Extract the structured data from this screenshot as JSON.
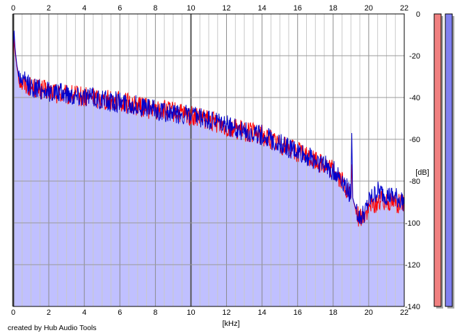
{
  "credit": "created by Hub Audio Tools",
  "chart_data": {
    "type": "area",
    "title": "",
    "xlabel": "[kHz]",
    "ylabel": "[dB]",
    "xlim": [
      0,
      22
    ],
    "ylim": [
      -140,
      0
    ],
    "x_ticks": [
      "0",
      "2",
      "4",
      "6",
      "8",
      "10",
      "12",
      "14",
      "16",
      "18",
      "20",
      "22"
    ],
    "y_ticks": [
      "0",
      "-20",
      "-40",
      "-60",
      "-80",
      "-100",
      "-120",
      "-140"
    ],
    "x_grid_step": 0.5,
    "y_grid_step": 20,
    "grid": true,
    "fill_color": "#c0c0ff",
    "series": [
      {
        "color": "#ff0000",
        "x": [
          0,
          0.05,
          0.1,
          0.2,
          0.3,
          0.5,
          0.8,
          1,
          1.5,
          2,
          2.5,
          3,
          3.5,
          4,
          4.5,
          5,
          5.5,
          6,
          6.5,
          7,
          7.5,
          8,
          8.5,
          9,
          9.5,
          10,
          10.5,
          11,
          11.5,
          12,
          12.5,
          13,
          13.5,
          14,
          14.5,
          15,
          15.5,
          16,
          16.5,
          17,
          17.5,
          18,
          18.5,
          18.8,
          19,
          19.05,
          19.1,
          19.3,
          19.5,
          19.8,
          20,
          20.5,
          21,
          21.5,
          22
        ],
        "values": [
          -20,
          -12,
          -18,
          -25,
          -30,
          -33,
          -34,
          -35,
          -36,
          -37,
          -38,
          -39,
          -39,
          -40,
          -40,
          -41,
          -41,
          -42,
          -43,
          -44,
          -45,
          -46,
          -46,
          -47,
          -48,
          -49,
          -50,
          -51,
          -52,
          -54,
          -55,
          -56,
          -57,
          -58,
          -60,
          -62,
          -64,
          -66,
          -68,
          -70,
          -72,
          -75,
          -80,
          -85,
          -88,
          -72,
          -88,
          -95,
          -98,
          -96,
          -93,
          -90,
          -89,
          -90,
          -92
        ]
      },
      {
        "color": "#0000cc",
        "x": [
          0,
          0.05,
          0.1,
          0.2,
          0.3,
          0.5,
          0.8,
          1,
          1.5,
          2,
          2.5,
          3,
          3.5,
          4,
          4.5,
          5,
          5.5,
          6,
          6.5,
          7,
          7.5,
          8,
          8.5,
          9,
          9.5,
          10,
          10.5,
          11,
          11.5,
          12,
          12.5,
          13,
          13.5,
          14,
          14.5,
          15,
          15.5,
          16,
          16.5,
          17,
          17.5,
          18,
          18.5,
          18.8,
          19,
          19.05,
          19.1,
          19.3,
          19.5,
          19.8,
          20,
          20.5,
          21,
          21.5,
          22
        ],
        "values": [
          -18,
          -8,
          -16,
          -24,
          -29,
          -32,
          -33,
          -35,
          -36,
          -37,
          -38,
          -38,
          -39,
          -39,
          -40,
          -41,
          -42,
          -42,
          -43,
          -44,
          -45,
          -46,
          -47,
          -48,
          -48,
          -49,
          -50,
          -51,
          -52,
          -53,
          -55,
          -56,
          -57,
          -58,
          -60,
          -62,
          -64,
          -66,
          -68,
          -70,
          -72,
          -75,
          -79,
          -84,
          -86,
          -57,
          -88,
          -94,
          -98,
          -95,
          -90,
          -85,
          -87,
          -88,
          -90
        ]
      }
    ]
  },
  "meters": [
    {
      "color": "#f08080",
      "level": 0
    },
    {
      "color": "#8080f0",
      "level": 0
    }
  ]
}
